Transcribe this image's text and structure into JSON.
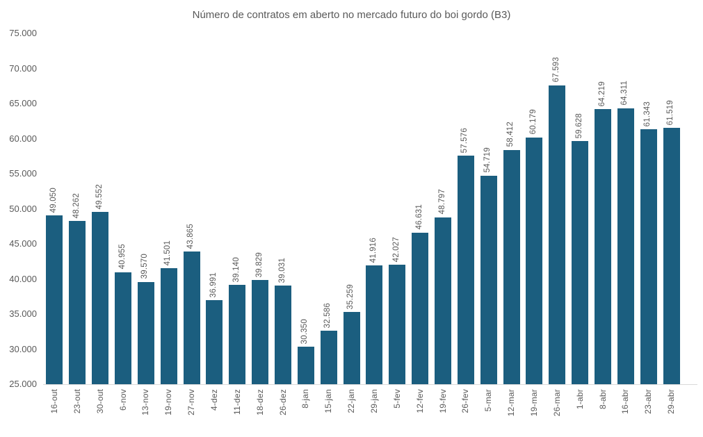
{
  "colors": {
    "bar": "#1b5e7f",
    "text": "#595959",
    "axis_line": "#d9d9d9",
    "background": "#ffffff"
  },
  "chart_data": {
    "type": "bar",
    "title": "Número de contratos em aberto no mercado futuro do boi gordo (B3)",
    "xlabel": "",
    "ylabel": "",
    "ylim": [
      25000,
      75000
    ],
    "grid": false,
    "legend": false,
    "categories": [
      "16-out",
      "23-out",
      "30-out",
      "6-nov",
      "13-nov",
      "19-nov",
      "27-nov",
      "4-dez",
      "11-dez",
      "18-dez",
      "26-dez",
      "8-jan",
      "15-jan",
      "22-jan",
      "29-jan",
      "5-fev",
      "12-fev",
      "19-fev",
      "26-fev",
      "5-mar",
      "12-mar",
      "19-mar",
      "26-mar",
      "1-abr",
      "8-abr",
      "16-abr",
      "23-abr",
      "29-abr"
    ],
    "values": [
      49050,
      48262,
      49552,
      40955,
      39570,
      41501,
      43865,
      36991,
      39140,
      39829,
      39031,
      30350,
      32586,
      35259,
      41916,
      42027,
      46631,
      48797,
      57576,
      54719,
      58412,
      60179,
      67593,
      59628,
      64219,
      64311,
      61343,
      61519
    ],
    "value_labels": [
      "49.050",
      "48.262",
      "49.552",
      "40.955",
      "39.570",
      "41.501",
      "43.865",
      "36.991",
      "39.140",
      "39.829",
      "39.031",
      "30.350",
      "32.586",
      "35.259",
      "41.916",
      "42.027",
      "46.631",
      "48.797",
      "57.576",
      "54.719",
      "58.412",
      "60.179",
      "67.593",
      "59.628",
      "64.219",
      "64.311",
      "61.343",
      "61.519"
    ],
    "y_tick_values": [
      75000,
      70000,
      65000,
      60000,
      55000,
      50000,
      45000,
      40000,
      35000,
      30000,
      25000
    ],
    "y_tick_labels": [
      "75.000",
      "70.000",
      "65.000",
      "60.000",
      "55.000",
      "50.000",
      "45.000",
      "40.000",
      "35.000",
      "30.000",
      "25.000"
    ]
  }
}
